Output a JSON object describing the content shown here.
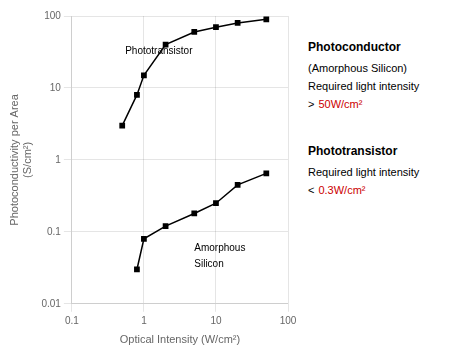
{
  "chart_data": {
    "type": "line",
    "xlabel": "Optical Intensity (W/cm²)",
    "ylabel": [
      "Photoconductivity per Area",
      "(S/cm²)"
    ],
    "log": true,
    "grid": true,
    "xlim": [
      0.1,
      100
    ],
    "ylim": [
      0.01,
      100
    ],
    "xticks": [
      0.1,
      1,
      10,
      100
    ],
    "yticks": [
      0.01,
      0.1,
      1,
      10,
      100
    ],
    "series": [
      {
        "color": "black",
        "marker": "square",
        "x": [
          0.5,
          0.8,
          1.0,
          2.0,
          5.0,
          10.0,
          20.0,
          50.0
        ],
        "values": [
          3.0,
          8.0,
          15.0,
          40.0,
          60.0,
          70.0,
          80.0,
          90.0
        ]
      },
      {
        "color": "black",
        "marker": "square",
        "x": [
          0.8,
          1.0,
          2.0,
          5.0,
          10.0,
          20.0,
          50.0
        ],
        "values": [
          0.03,
          0.08,
          0.12,
          0.18,
          0.25,
          0.45,
          0.65
        ]
      }
    ],
    "annotations": [
      {
        "text": "Phototransistor",
        "x": 0.55,
        "y": 30.0
      },
      {
        "text": "Amorphous",
        "x": 5.0,
        "y": 0.055
      },
      {
        "text": "Silicon",
        "x": 5.0,
        "y": 0.032
      }
    ],
    "side_notes": [
      {
        "title": "Photoconductor",
        "lines": [
          [
            {
              "text": "(Amorphous Silicon)"
            }
          ],
          [
            {
              "text": "Required light intensity"
            }
          ],
          [
            {
              "text": ">"
            },
            {
              "text": "50W/cm²",
              "color": "#cc0000"
            }
          ]
        ]
      },
      {
        "title": "Phototransistor",
        "lines": [
          [
            {
              "text": "Required light intensity"
            }
          ],
          [
            {
              "text": "<"
            },
            {
              "text": "0.3W/cm²",
              "color": "#cc0000"
            }
          ]
        ]
      }
    ]
  }
}
